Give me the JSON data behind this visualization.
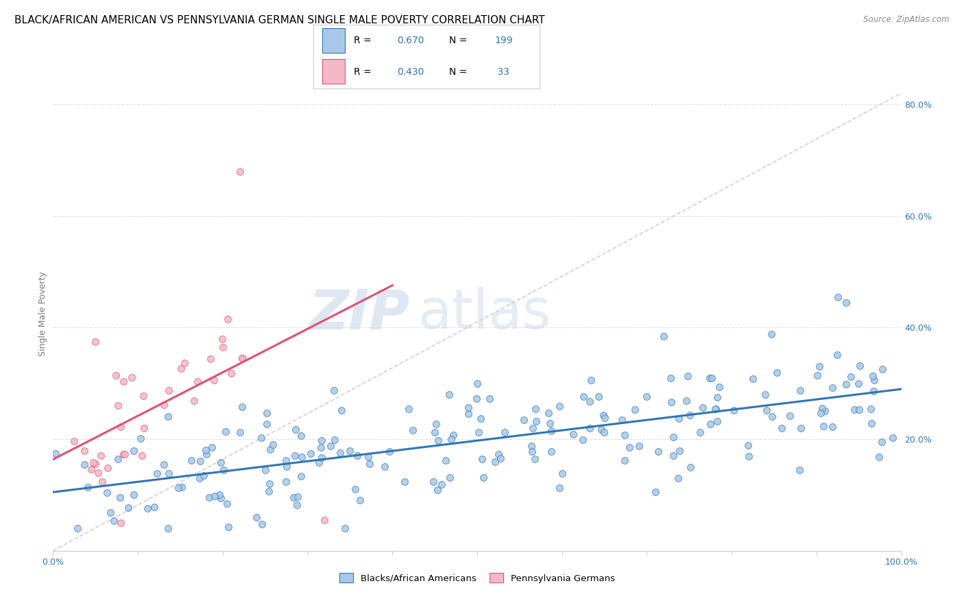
{
  "title": "BLACK/AFRICAN AMERICAN VS PENNSYLVANIA GERMAN SINGLE MALE POVERTY CORRELATION CHART",
  "source": "Source: ZipAtlas.com",
  "ylabel": "Single Male Poverty",
  "watermark_zip": "ZIP",
  "watermark_atlas": "atlas",
  "blue_scatter_color": "#A8C8E8",
  "blue_line_color": "#2E75B6",
  "pink_scatter_color": "#F4B8C8",
  "pink_line_color": "#E05070",
  "diag_color": "#CCCCCC",
  "grid_color": "#E0E0E0",
  "background_color": "#FFFFFF",
  "R1": 0.67,
  "N1": 199,
  "R2": 0.43,
  "N2": 33,
  "blue_slope": 0.16,
  "blue_intercept": 0.115,
  "pink_slope": 0.9,
  "pink_intercept": 0.145,
  "xlim": [
    0.0,
    1.0
  ],
  "ylim": [
    0.0,
    0.85
  ],
  "yticks": [
    0.0,
    0.2,
    0.4,
    0.6,
    0.8
  ],
  "ytick_labels": [
    "",
    "20.0%",
    "40.0%",
    "60.0%",
    "80.0%"
  ],
  "xticks": [
    0.0,
    0.1,
    0.2,
    0.3,
    0.4,
    0.5,
    0.6,
    0.7,
    0.8,
    0.9,
    1.0
  ],
  "title_fontsize": 11,
  "source_fontsize": 8.5,
  "axis_label_fontsize": 9,
  "tick_fontsize": 9,
  "legend_fontsize": 10,
  "watermark_fontsize_zip": 58,
  "watermark_fontsize_atlas": 58,
  "seed1": 7,
  "seed2": 42
}
